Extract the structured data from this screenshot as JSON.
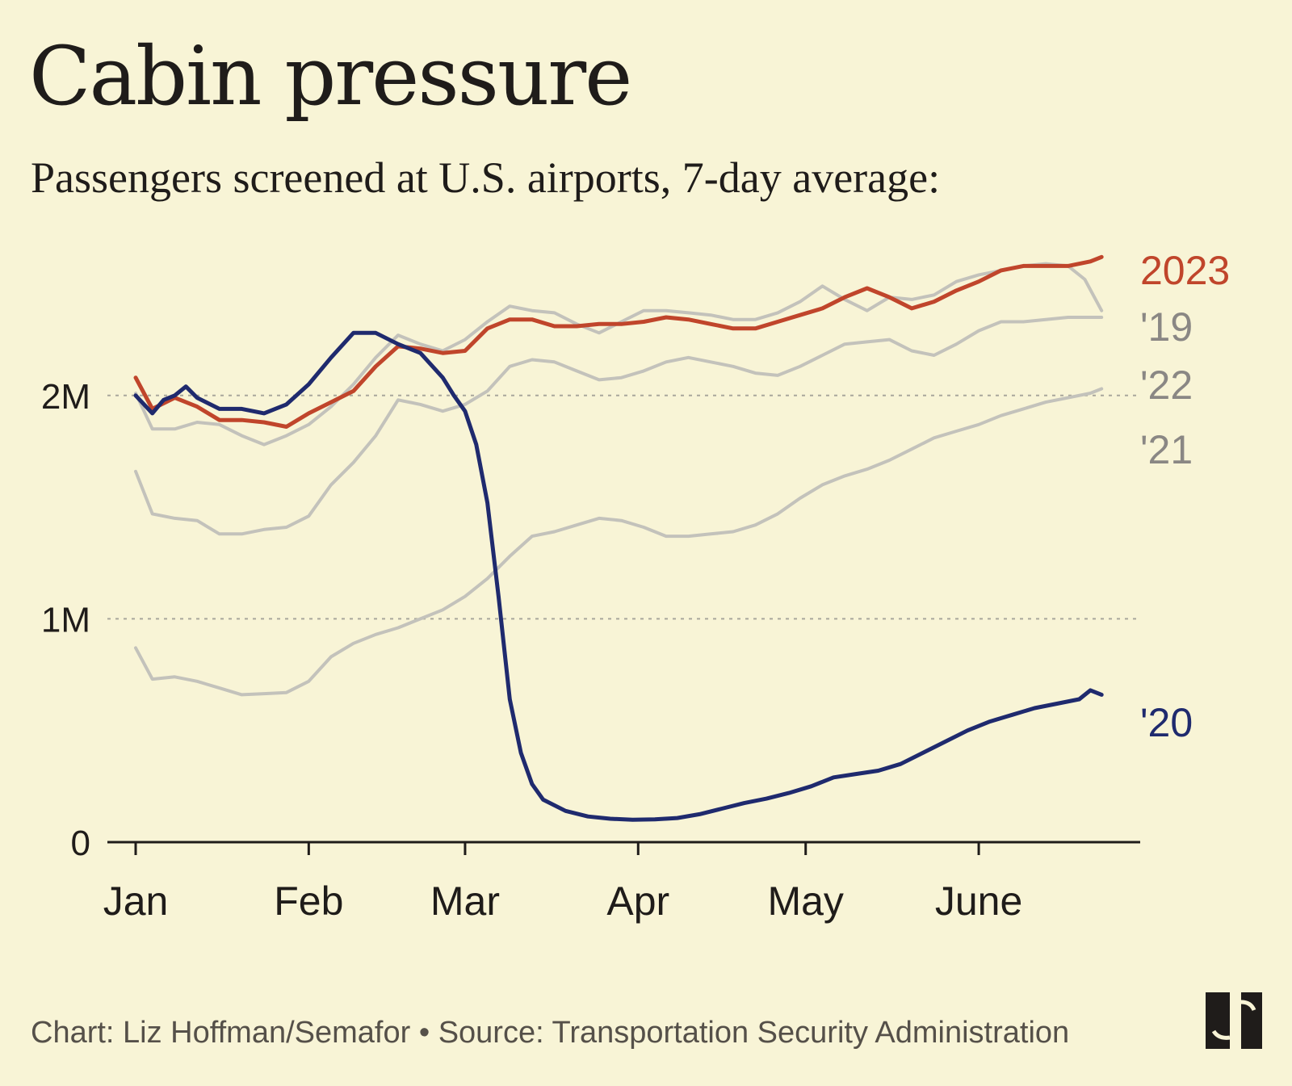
{
  "header": {
    "title": "Cabin pressure",
    "subtitle": "Passengers screened at U.S. airports, 7-day average:"
  },
  "footer": {
    "credit": "Chart: Liz Hoffman/Semafor • Source: Transportation Security Administration"
  },
  "colors": {
    "background": "#f8f4d6",
    "highlight_2023": "#c0452b",
    "highlight_2020": "#1f2a6e",
    "context_years": "#c3c2bb",
    "label_gray": "#8a8784",
    "text": "#1f1c1a",
    "gridline": "#a9a79c"
  },
  "chart_data": {
    "type": "line",
    "title": "Cabin pressure",
    "subtitle": "Passengers screened at U.S. airports, 7-day average:",
    "xlabel": "",
    "ylabel": "",
    "x_unit": "day of year",
    "x_ticks": [
      {
        "label": "Jan",
        "day": 1
      },
      {
        "label": "Feb",
        "day": 32
      },
      {
        "label": "Mar",
        "day": 60
      },
      {
        "label": "Apr",
        "day": 91
      },
      {
        "label": "May",
        "day": 121
      },
      {
        "label": "June",
        "day": 152
      }
    ],
    "xlim": [
      1,
      176
    ],
    "y_ticks": [
      {
        "label": "0",
        "value": 0
      },
      {
        "label": "1M",
        "value": 1000000
      },
      {
        "label": "2M",
        "value": 2000000
      }
    ],
    "ylim": [
      0,
      2650000
    ],
    "grid": "dotted horizontal at 1M and 2M",
    "legend": "direct labels at right end of lines",
    "series": [
      {
        "name": "'21",
        "color": "#c3c2bb",
        "points": [
          [
            1,
            870000
          ],
          [
            4,
            730000
          ],
          [
            8,
            740000
          ],
          [
            12,
            720000
          ],
          [
            16,
            690000
          ],
          [
            20,
            660000
          ],
          [
            24,
            665000
          ],
          [
            28,
            670000
          ],
          [
            32,
            720000
          ],
          [
            36,
            830000
          ],
          [
            40,
            890000
          ],
          [
            44,
            930000
          ],
          [
            48,
            960000
          ],
          [
            52,
            1000000
          ],
          [
            56,
            1040000
          ],
          [
            60,
            1100000
          ],
          [
            64,
            1180000
          ],
          [
            68,
            1280000
          ],
          [
            72,
            1370000
          ],
          [
            76,
            1390000
          ],
          [
            80,
            1420000
          ],
          [
            84,
            1450000
          ],
          [
            88,
            1440000
          ],
          [
            92,
            1410000
          ],
          [
            96,
            1370000
          ],
          [
            100,
            1370000
          ],
          [
            104,
            1380000
          ],
          [
            108,
            1390000
          ],
          [
            112,
            1420000
          ],
          [
            116,
            1470000
          ],
          [
            120,
            1540000
          ],
          [
            124,
            1600000
          ],
          [
            128,
            1640000
          ],
          [
            132,
            1670000
          ],
          [
            136,
            1710000
          ],
          [
            140,
            1760000
          ],
          [
            144,
            1810000
          ],
          [
            148,
            1840000
          ],
          [
            152,
            1870000
          ],
          [
            156,
            1910000
          ],
          [
            160,
            1940000
          ],
          [
            164,
            1970000
          ],
          [
            168,
            1990000
          ],
          [
            172,
            2010000
          ],
          [
            174,
            2030000
          ]
        ]
      },
      {
        "name": "'22",
        "color": "#c3c2bb",
        "points": [
          [
            1,
            1660000
          ],
          [
            4,
            1470000
          ],
          [
            8,
            1450000
          ],
          [
            12,
            1440000
          ],
          [
            16,
            1380000
          ],
          [
            20,
            1380000
          ],
          [
            24,
            1400000
          ],
          [
            28,
            1410000
          ],
          [
            32,
            1460000
          ],
          [
            36,
            1600000
          ],
          [
            40,
            1700000
          ],
          [
            44,
            1820000
          ],
          [
            48,
            1980000
          ],
          [
            52,
            1960000
          ],
          [
            56,
            1930000
          ],
          [
            60,
            1960000
          ],
          [
            64,
            2020000
          ],
          [
            68,
            2130000
          ],
          [
            72,
            2160000
          ],
          [
            76,
            2150000
          ],
          [
            80,
            2110000
          ],
          [
            84,
            2070000
          ],
          [
            88,
            2080000
          ],
          [
            92,
            2110000
          ],
          [
            96,
            2150000
          ],
          [
            100,
            2170000
          ],
          [
            104,
            2150000
          ],
          [
            108,
            2130000
          ],
          [
            112,
            2100000
          ],
          [
            116,
            2090000
          ],
          [
            120,
            2130000
          ],
          [
            124,
            2180000
          ],
          [
            128,
            2230000
          ],
          [
            132,
            2240000
          ],
          [
            136,
            2250000
          ],
          [
            140,
            2200000
          ],
          [
            144,
            2180000
          ],
          [
            148,
            2230000
          ],
          [
            152,
            2290000
          ],
          [
            156,
            2330000
          ],
          [
            160,
            2330000
          ],
          [
            164,
            2340000
          ],
          [
            168,
            2350000
          ],
          [
            172,
            2350000
          ],
          [
            174,
            2350000
          ]
        ]
      },
      {
        "name": "'19",
        "color": "#c3c2bb",
        "points": [
          [
            1,
            2010000
          ],
          [
            4,
            1850000
          ],
          [
            8,
            1850000
          ],
          [
            12,
            1880000
          ],
          [
            16,
            1870000
          ],
          [
            20,
            1820000
          ],
          [
            24,
            1780000
          ],
          [
            28,
            1820000
          ],
          [
            32,
            1870000
          ],
          [
            36,
            1950000
          ],
          [
            40,
            2050000
          ],
          [
            44,
            2170000
          ],
          [
            48,
            2270000
          ],
          [
            52,
            2230000
          ],
          [
            56,
            2200000
          ],
          [
            60,
            2250000
          ],
          [
            64,
            2330000
          ],
          [
            68,
            2400000
          ],
          [
            72,
            2380000
          ],
          [
            76,
            2370000
          ],
          [
            80,
            2320000
          ],
          [
            84,
            2280000
          ],
          [
            88,
            2330000
          ],
          [
            92,
            2380000
          ],
          [
            96,
            2380000
          ],
          [
            100,
            2370000
          ],
          [
            104,
            2360000
          ],
          [
            108,
            2340000
          ],
          [
            112,
            2340000
          ],
          [
            116,
            2370000
          ],
          [
            120,
            2420000
          ],
          [
            124,
            2490000
          ],
          [
            128,
            2430000
          ],
          [
            132,
            2380000
          ],
          [
            136,
            2440000
          ],
          [
            140,
            2430000
          ],
          [
            144,
            2450000
          ],
          [
            148,
            2510000
          ],
          [
            152,
            2540000
          ],
          [
            156,
            2560000
          ],
          [
            160,
            2580000
          ],
          [
            164,
            2590000
          ],
          [
            168,
            2580000
          ],
          [
            171,
            2520000
          ],
          [
            174,
            2380000
          ]
        ]
      },
      {
        "name": "2023",
        "color": "#c0452b",
        "points": [
          [
            1,
            2080000
          ],
          [
            4,
            1940000
          ],
          [
            8,
            1990000
          ],
          [
            12,
            1950000
          ],
          [
            16,
            1890000
          ],
          [
            20,
            1890000
          ],
          [
            24,
            1880000
          ],
          [
            28,
            1860000
          ],
          [
            32,
            1920000
          ],
          [
            36,
            1970000
          ],
          [
            40,
            2020000
          ],
          [
            44,
            2130000
          ],
          [
            48,
            2220000
          ],
          [
            52,
            2210000
          ],
          [
            56,
            2190000
          ],
          [
            60,
            2200000
          ],
          [
            64,
            2300000
          ],
          [
            68,
            2340000
          ],
          [
            72,
            2340000
          ],
          [
            76,
            2310000
          ],
          [
            80,
            2310000
          ],
          [
            84,
            2320000
          ],
          [
            88,
            2320000
          ],
          [
            92,
            2330000
          ],
          [
            96,
            2350000
          ],
          [
            100,
            2340000
          ],
          [
            104,
            2320000
          ],
          [
            108,
            2300000
          ],
          [
            112,
            2300000
          ],
          [
            116,
            2330000
          ],
          [
            120,
            2360000
          ],
          [
            124,
            2390000
          ],
          [
            128,
            2440000
          ],
          [
            132,
            2480000
          ],
          [
            136,
            2440000
          ],
          [
            140,
            2390000
          ],
          [
            144,
            2420000
          ],
          [
            148,
            2470000
          ],
          [
            152,
            2510000
          ],
          [
            156,
            2560000
          ],
          [
            160,
            2580000
          ],
          [
            164,
            2580000
          ],
          [
            168,
            2580000
          ],
          [
            172,
            2600000
          ],
          [
            174,
            2620000
          ]
        ]
      },
      {
        "name": "'20",
        "color": "#1f2a6e",
        "points": [
          [
            1,
            2000000
          ],
          [
            4,
            1920000
          ],
          [
            6,
            1980000
          ],
          [
            8,
            2000000
          ],
          [
            10,
            2040000
          ],
          [
            12,
            1990000
          ],
          [
            16,
            1940000
          ],
          [
            20,
            1940000
          ],
          [
            24,
            1920000
          ],
          [
            28,
            1960000
          ],
          [
            32,
            2050000
          ],
          [
            36,
            2170000
          ],
          [
            40,
            2280000
          ],
          [
            44,
            2280000
          ],
          [
            48,
            2230000
          ],
          [
            52,
            2190000
          ],
          [
            56,
            2080000
          ],
          [
            58,
            2000000
          ],
          [
            60,
            1930000
          ],
          [
            62,
            1780000
          ],
          [
            64,
            1520000
          ],
          [
            66,
            1100000
          ],
          [
            68,
            640000
          ],
          [
            70,
            400000
          ],
          [
            72,
            260000
          ],
          [
            74,
            190000
          ],
          [
            78,
            140000
          ],
          [
            82,
            115000
          ],
          [
            86,
            105000
          ],
          [
            90,
            100000
          ],
          [
            94,
            102000
          ],
          [
            98,
            108000
          ],
          [
            102,
            125000
          ],
          [
            106,
            150000
          ],
          [
            110,
            175000
          ],
          [
            114,
            195000
          ],
          [
            118,
            220000
          ],
          [
            122,
            250000
          ],
          [
            126,
            290000
          ],
          [
            130,
            305000
          ],
          [
            134,
            320000
          ],
          [
            138,
            350000
          ],
          [
            142,
            400000
          ],
          [
            146,
            450000
          ],
          [
            150,
            500000
          ],
          [
            154,
            540000
          ],
          [
            158,
            570000
          ],
          [
            162,
            600000
          ],
          [
            166,
            620000
          ],
          [
            170,
            640000
          ],
          [
            172,
            680000
          ],
          [
            174,
            660000
          ]
        ]
      }
    ]
  }
}
